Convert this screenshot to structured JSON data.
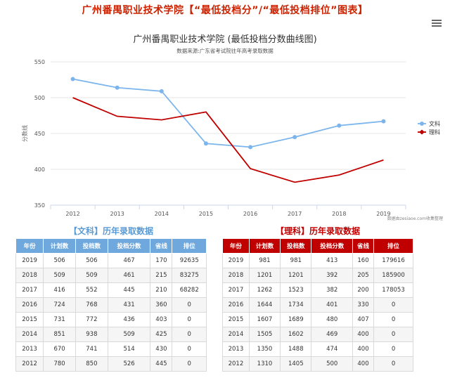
{
  "page_title": "广州番禺职业技术学院【“最低投档分”/“最低投档排位”图表】",
  "menu_icon": "hamburger-menu-icon",
  "chart_data": {
    "type": "line",
    "title": "广州番禺职业技术学院  (最低投档分数曲线图)",
    "subtitle": "数据来源:广东省考试院往年高考录取数据",
    "xlabel": "",
    "ylabel": "分数线",
    "categories": [
      "2012",
      "2013",
      "2014",
      "2015",
      "2016",
      "2017",
      "2018",
      "2019"
    ],
    "ylim": [
      350,
      550
    ],
    "yticks": [
      350,
      400,
      450,
      500,
      550
    ],
    "grid": true,
    "legend_position": "right",
    "credit": "数据由zesiaoe.com收集整理",
    "series": [
      {
        "name": "文科",
        "color": "#7cb5ec",
        "values": [
          526,
          514,
          509,
          436,
          431,
          445,
          461,
          467
        ]
      },
      {
        "name": "理科",
        "color": "#c00000",
        "values": [
          500,
          474,
          469,
          480,
          401,
          382,
          392,
          413
        ]
      }
    ]
  },
  "tables": {
    "wen": {
      "title": "【文科】历年录取数据",
      "headers": [
        "年份",
        "计划数",
        "投档数",
        "投档分数",
        "省线",
        "排位"
      ],
      "rows": [
        [
          "2019",
          "506",
          "506",
          "467",
          "170",
          "92635"
        ],
        [
          "2018",
          "509",
          "509",
          "461",
          "215",
          "83275"
        ],
        [
          "2017",
          "416",
          "552",
          "445",
          "210",
          "68282"
        ],
        [
          "2016",
          "724",
          "768",
          "431",
          "360",
          "0"
        ],
        [
          "2015",
          "731",
          "772",
          "436",
          "403",
          "0"
        ],
        [
          "2014",
          "851",
          "938",
          "509",
          "425",
          "0"
        ],
        [
          "2013",
          "670",
          "741",
          "514",
          "430",
          "0"
        ],
        [
          "2012",
          "780",
          "850",
          "526",
          "445",
          "0"
        ]
      ]
    },
    "li": {
      "title": "【理科】历年录取数据",
      "headers": [
        "年份",
        "计划数",
        "投档数",
        "投档分数",
        "省线",
        "排位"
      ],
      "rows": [
        [
          "2019",
          "981",
          "981",
          "413",
          "160",
          "179616"
        ],
        [
          "2018",
          "1201",
          "1201",
          "392",
          "205",
          "185900"
        ],
        [
          "2017",
          "1262",
          "1523",
          "382",
          "200",
          "178053"
        ],
        [
          "2016",
          "1644",
          "1734",
          "401",
          "330",
          "0"
        ],
        [
          "2015",
          "1607",
          "1689",
          "480",
          "407",
          "0"
        ],
        [
          "2014",
          "1505",
          "1602",
          "469",
          "400",
          "0"
        ],
        [
          "2013",
          "1350",
          "1488",
          "474",
          "400",
          "0"
        ],
        [
          "2012",
          "1310",
          "1405",
          "500",
          "400",
          "0"
        ]
      ]
    }
  }
}
